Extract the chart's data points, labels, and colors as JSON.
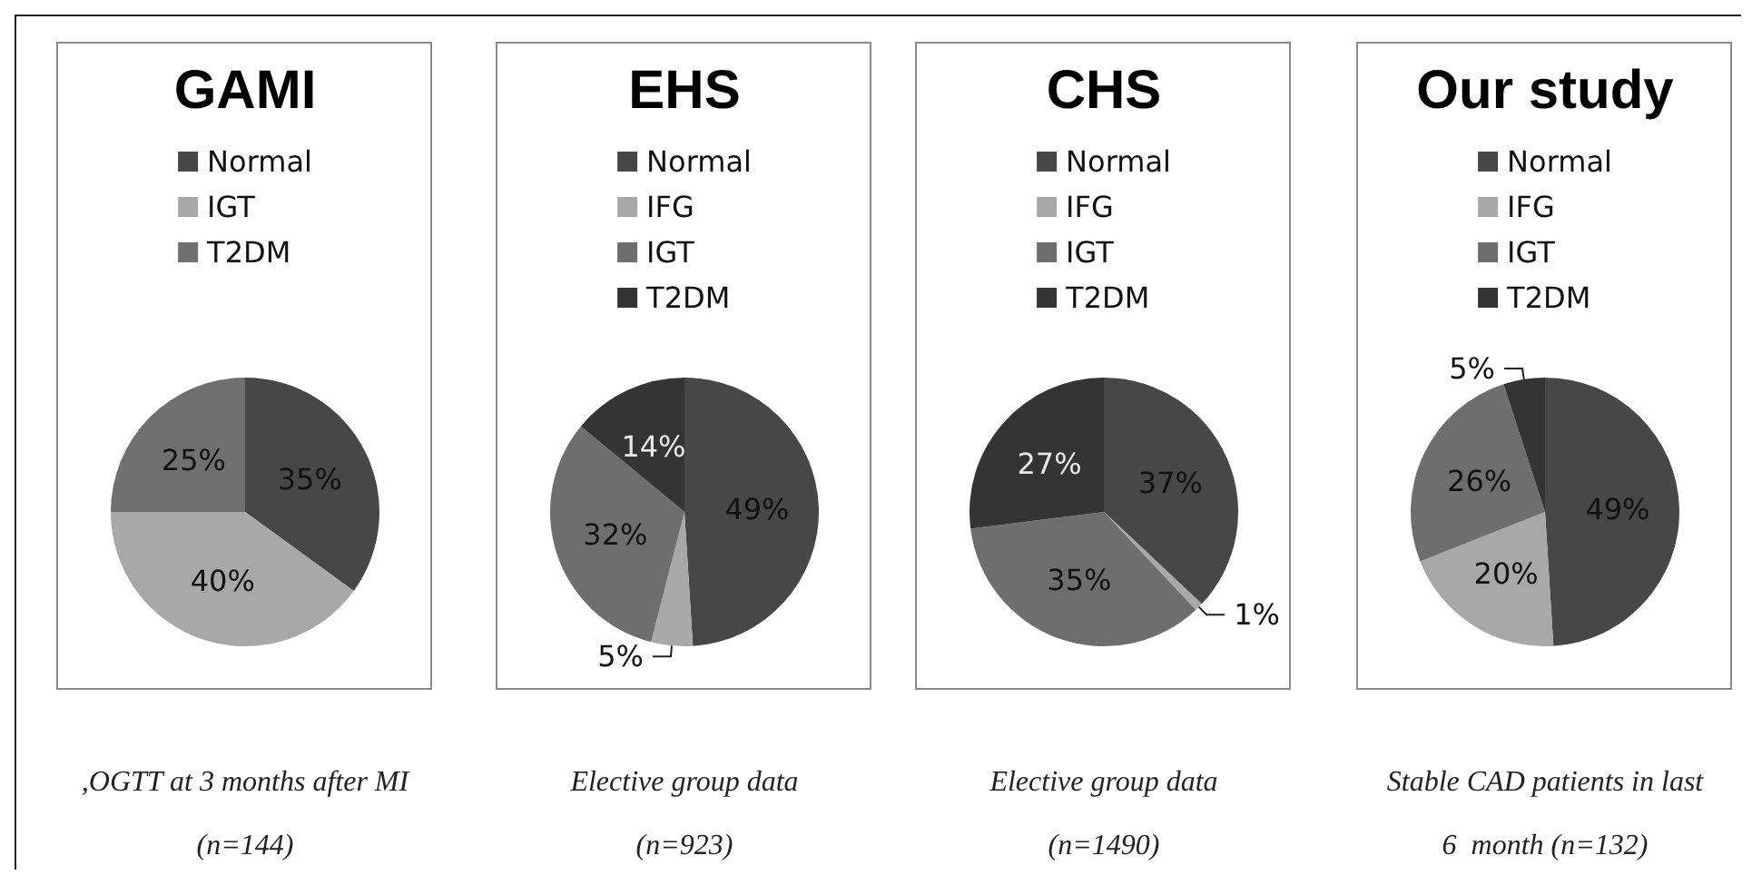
{
  "chart_data": [
    {
      "type": "pie",
      "title": "GAMI",
      "categories": [
        "Normal",
        "IGT",
        "T2DM"
      ],
      "values": [
        35,
        40,
        25
      ],
      "colors": [
        "#474747",
        "#a8a8a8",
        "#707070"
      ],
      "value_labels": [
        "35%",
        "40%",
        "25%"
      ],
      "legend": "top",
      "annotations": [
        ",OGTT at 3 months after MI",
        "(n=144)"
      ]
    },
    {
      "type": "pie",
      "title": "EHS",
      "categories": [
        "Normal",
        "IFG",
        "IGT",
        "T2DM"
      ],
      "values": [
        49,
        5,
        32,
        14
      ],
      "colors": [
        "#474747",
        "#a8a8a8",
        "#6e6e6e",
        "#343434"
      ],
      "value_labels": [
        "49%",
        "5%",
        "32%",
        "14%"
      ],
      "legend": "top",
      "annotations": [
        "Elective group data",
        "(n=923)"
      ]
    },
    {
      "type": "pie",
      "title": "CHS",
      "categories": [
        "Normal",
        "IFG",
        "IGT",
        "T2DM"
      ],
      "values": [
        37,
        1,
        35,
        27
      ],
      "colors": [
        "#474747",
        "#a8a8a8",
        "#6e6e6e",
        "#343434"
      ],
      "value_labels": [
        "37%",
        "1%",
        "35%",
        "27%"
      ],
      "legend": "top",
      "annotations": [
        "Elective group data",
        "(n=1490)"
      ]
    },
    {
      "type": "pie",
      "title": "Our study",
      "categories": [
        "Normal",
        "IFG",
        "IGT",
        "T2DM"
      ],
      "values": [
        49,
        20,
        26,
        5
      ],
      "colors": [
        "#474747",
        "#a8a8a8",
        "#6e6e6e",
        "#343434"
      ],
      "value_labels": [
        "49%",
        "20%",
        "26%",
        "5%"
      ],
      "legend": "top",
      "annotations": [
        "Stable CAD patients in last",
        "6  month (n=132)"
      ]
    }
  ]
}
